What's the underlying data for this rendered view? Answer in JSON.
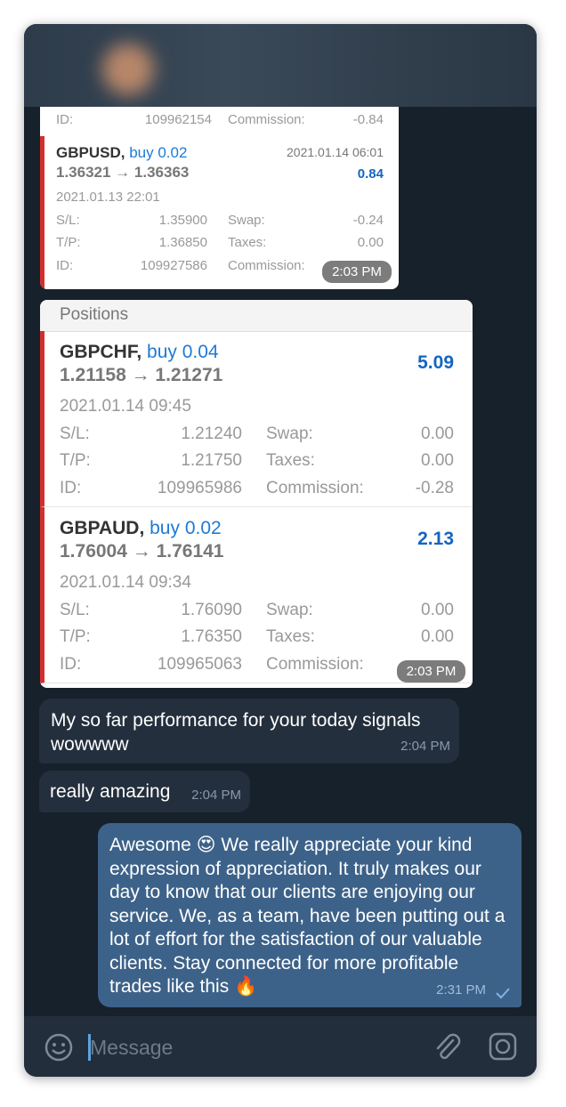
{
  "card1": {
    "top_row": [
      "ID:",
      "109962154",
      "Commission:",
      "-0.84"
    ],
    "trade": {
      "symbol": "GBPUSD,",
      "side": "buy 0.02",
      "close_time": "2021.01.14 06:01",
      "prices": "1.36321 → 1.36363",
      "profit": "0.84",
      "open_time": "2021.01.13 22:01",
      "rows": [
        [
          "S/L:",
          "1.35900",
          "Swap:",
          "-0.24"
        ],
        [
          "T/P:",
          "1.36850",
          "Taxes:",
          "0.00"
        ],
        [
          "ID:",
          "109927586",
          "Commission:"
        ]
      ]
    },
    "time": "2:03 PM"
  },
  "card2": {
    "title": "Positions",
    "trades": [
      {
        "symbol": "GBPCHF,",
        "side": "buy 0.04",
        "prices": "1.21158 → 1.21271",
        "profit": "5.09",
        "open_time": "2021.01.14 09:45",
        "rows": [
          [
            "S/L:",
            "1.21240",
            "Swap:",
            "0.00"
          ],
          [
            "T/P:",
            "1.21750",
            "Taxes:",
            "0.00"
          ],
          [
            "ID:",
            "109965986",
            "Commission:",
            "-0.28"
          ]
        ]
      },
      {
        "symbol": "GBPAUD,",
        "side": "buy 0.02",
        "prices": "1.76004 → 1.76141",
        "profit": "2.13",
        "open_time": "2021.01.14 09:34",
        "rows": [
          [
            "S/L:",
            "1.76090",
            "Swap:",
            "0.00"
          ],
          [
            "T/P:",
            "1.76350",
            "Taxes:",
            "0.00"
          ],
          [
            "ID:",
            "109965063",
            "Commission:"
          ]
        ]
      }
    ],
    "time": "2:03 PM"
  },
  "messages": [
    {
      "text": "My so far performance for your today signals wowwww",
      "time": "2:04 PM"
    },
    {
      "text": "really amazing",
      "time": "2:04 PM"
    },
    {
      "text": "Awesome  😍 We really appreciate your kind expression of appreciation. It truly makes our day to know that our clients are enjoying our service. We, as a team, have been putting out a lot of effort for the satisfaction of our valuable clients. Stay connected for more profitable trades like this 🔥",
      "time": "2:31 PM"
    }
  ],
  "input": {
    "placeholder": "Message"
  }
}
